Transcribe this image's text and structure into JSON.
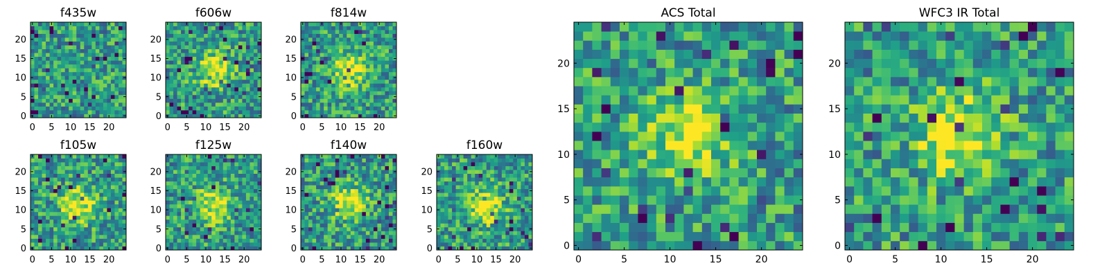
{
  "chart_data": [
    {
      "type": "heatmap",
      "title": "f435w",
      "xlim": [
        0,
        24
      ],
      "ylim": [
        0,
        24
      ],
      "xticks": [
        "0",
        "5",
        "10",
        "15",
        "20"
      ],
      "yticks": [
        "0",
        "5",
        "10",
        "15",
        "20"
      ],
      "grid_size": 25,
      "colormap": "viridis",
      "peak": null,
      "seed": 11
    },
    {
      "type": "heatmap",
      "title": "f606w",
      "xlim": [
        0,
        24
      ],
      "ylim": [
        0,
        24
      ],
      "xticks": [
        "0",
        "5",
        "10",
        "15",
        "20"
      ],
      "yticks": [
        "0",
        "5",
        "10",
        "15",
        "20"
      ],
      "grid_size": 25,
      "colormap": "viridis",
      "peak": [
        12,
        12
      ],
      "seed": 23
    },
    {
      "type": "heatmap",
      "title": "f814w",
      "xlim": [
        0,
        24
      ],
      "ylim": [
        0,
        24
      ],
      "xticks": [
        "0",
        "5",
        "10",
        "15",
        "20"
      ],
      "yticks": [
        "0",
        "5",
        "10",
        "15",
        "20"
      ],
      "grid_size": 25,
      "colormap": "viridis",
      "peak": [
        12,
        12
      ],
      "seed": 37
    },
    {
      "type": "heatmap",
      "title": "f105w",
      "xlim": [
        0,
        24
      ],
      "ylim": [
        0,
        24
      ],
      "xticks": [
        "0",
        "5",
        "10",
        "15",
        "20"
      ],
      "yticks": [
        "0",
        "5",
        "10",
        "15",
        "20"
      ],
      "grid_size": 25,
      "colormap": "viridis",
      "peak": [
        12,
        11
      ],
      "seed": 41
    },
    {
      "type": "heatmap",
      "title": "f125w",
      "xlim": [
        0,
        24
      ],
      "ylim": [
        0,
        24
      ],
      "xticks": [
        "0",
        "5",
        "10",
        "15",
        "20"
      ],
      "yticks": [
        "0",
        "5",
        "10",
        "15",
        "20"
      ],
      "grid_size": 25,
      "colormap": "viridis",
      "peak": [
        12,
        11
      ],
      "seed": 53
    },
    {
      "type": "heatmap",
      "title": "f140w",
      "xlim": [
        0,
        24
      ],
      "ylim": [
        0,
        24
      ],
      "xticks": [
        "0",
        "5",
        "10",
        "15",
        "20"
      ],
      "yticks": [
        "0",
        "5",
        "10",
        "15",
        "20"
      ],
      "grid_size": 25,
      "colormap": "viridis",
      "peak": [
        12,
        12
      ],
      "seed": 67
    },
    {
      "type": "heatmap",
      "title": "f160w",
      "xlim": [
        0,
        24
      ],
      "ylim": [
        0,
        24
      ],
      "xticks": [
        "0",
        "5",
        "10",
        "15",
        "20"
      ],
      "yticks": [
        "0",
        "5",
        "10",
        "15",
        "20"
      ],
      "grid_size": 25,
      "colormap": "viridis",
      "peak": [
        12,
        11
      ],
      "seed": 79
    },
    {
      "type": "heatmap",
      "title": "ACS Total",
      "xlim": [
        0,
        24
      ],
      "ylim": [
        0,
        24
      ],
      "xticks": [
        "0",
        "5",
        "10",
        "15",
        "20"
      ],
      "yticks": [
        "0",
        "5",
        "10",
        "15",
        "20"
      ],
      "grid_size": 25,
      "colormap": "viridis",
      "peak": [
        12,
        12
      ],
      "seed": 97
    },
    {
      "type": "heatmap",
      "title": "WFC3 IR Total",
      "xlim": [
        0,
        24
      ],
      "ylim": [
        0,
        24
      ],
      "xticks": [
        "0",
        "5",
        "10",
        "15",
        "20"
      ],
      "yticks": [
        "0",
        "5",
        "10",
        "15",
        "20"
      ],
      "grid_size": 25,
      "colormap": "viridis",
      "peak": [
        12,
        12
      ],
      "seed": 113
    }
  ]
}
